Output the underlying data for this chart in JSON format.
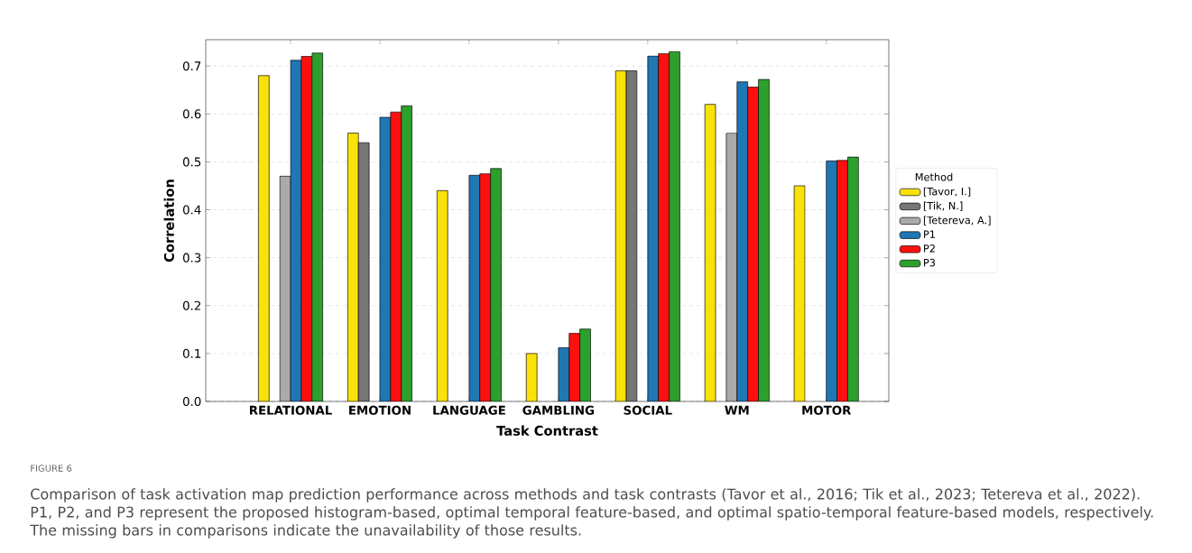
{
  "chart_data": {
    "type": "bar",
    "xlabel": "Task Contrast",
    "ylabel": "Correlation",
    "legend_title": "Method",
    "categories": [
      "RELATIONAL",
      "EMOTION",
      "LANGUAGE",
      "GAMBLING",
      "SOCIAL",
      "WM",
      "MOTOR"
    ],
    "series": [
      {
        "name": "[Tavor, I.]",
        "color": "#f9e10a",
        "values": [
          0.68,
          0.56,
          0.44,
          0.1,
          0.69,
          0.62,
          0.45
        ]
      },
      {
        "name": "[Tik, N.]",
        "color": "#767676",
        "values": [
          null,
          0.54,
          null,
          null,
          0.69,
          null,
          null
        ]
      },
      {
        "name": "[Tetereva, A.]",
        "color": "#aaaaaa",
        "values": [
          0.47,
          null,
          null,
          null,
          null,
          0.56,
          null
        ]
      },
      {
        "name": "P1",
        "color": "#1f77b4",
        "values": [
          0.712,
          0.593,
          0.472,
          0.112,
          0.721,
          0.667,
          0.502
        ]
      },
      {
        "name": "P2",
        "color": "#ff1010",
        "values": [
          0.72,
          0.604,
          0.475,
          0.142,
          0.726,
          0.656,
          0.503
        ]
      },
      {
        "name": "P3",
        "color": "#2ca02c",
        "values": [
          0.727,
          0.617,
          0.486,
          0.151,
          0.73,
          0.672,
          0.51
        ]
      }
    ],
    "ylim": [
      0,
      0.755
    ],
    "yticks": [
      {
        "value": 0,
        "label": "0.0"
      },
      {
        "value": 0.1,
        "label": "0.1"
      },
      {
        "value": 0.2,
        "label": "0.2"
      },
      {
        "value": 0.3,
        "label": "0.3"
      },
      {
        "value": 0.4,
        "label": "0.4"
      },
      {
        "value": 0.5,
        "label": "0.5"
      },
      {
        "value": 0.6,
        "label": "0.6"
      },
      {
        "value": 0.7,
        "label": "0.7"
      }
    ],
    "grid": "y",
    "legend": "right",
    "annotations": [
      "FIGURE 6",
      "Comparison of task activation map prediction performance across methods and task contrasts (Tavor et al., 2016; Tik et al., 2023; Tetereva et al., 2022). P1, P2, and P3 represent the proposed histogram-based, optimal temporal feature-based, and optimal spatio-temporal feature-based models, respectively. The missing bars in comparisons indicate the unavailability of those results."
    ]
  }
}
